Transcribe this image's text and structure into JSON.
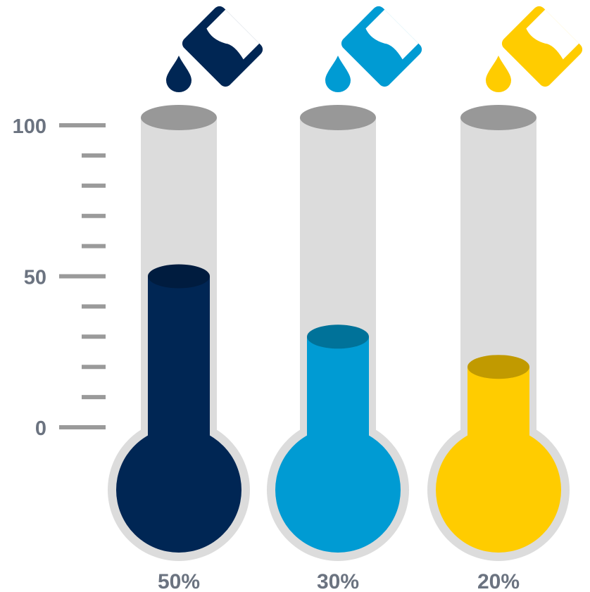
{
  "chart_data": {
    "type": "bar",
    "style": "thermometer",
    "categories": [
      "50%",
      "30%",
      "20%"
    ],
    "values": [
      50,
      30,
      20
    ],
    "ylim": [
      0,
      100
    ],
    "yticks": [
      0,
      50,
      100
    ],
    "ytick_labels": [
      "0",
      "50",
      "100"
    ],
    "minor_tick_step": 10,
    "data_labels": [
      "50%",
      "30%",
      "20%"
    ],
    "colors": {
      "series": [
        "#002654",
        "#009bd3",
        "#ffcc00"
      ],
      "series_top": [
        "#001c3f",
        "#007299",
        "#c19a00"
      ],
      "tube": "#dcdcdc",
      "tube_cap": "#989898",
      "ticks": "#9a9a9a",
      "text": "#6b7380"
    },
    "icons": [
      "pouring-beaker-icon",
      "pouring-beaker-icon",
      "pouring-beaker-icon"
    ],
    "grid": false,
    "legend": "none"
  }
}
